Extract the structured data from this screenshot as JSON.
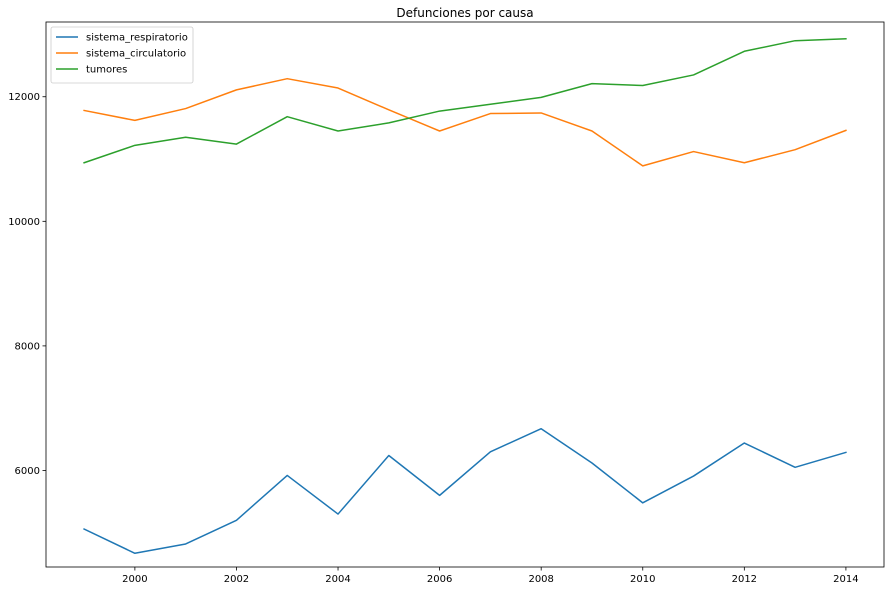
{
  "chart_data": {
    "type": "line",
    "title": "Defunciones por causa",
    "xlabel": "",
    "ylabel": "",
    "x": [
      1999,
      2000,
      2001,
      2002,
      2003,
      2004,
      2005,
      2006,
      2007,
      2008,
      2009,
      2010,
      2011,
      2012,
      2013,
      2014
    ],
    "xlim": [
      1998.25,
      2014.75
    ],
    "ylim": [
      4450,
      13200
    ],
    "xticks": [
      2000,
      2002,
      2004,
      2006,
      2008,
      2010,
      2012,
      2014
    ],
    "yticks": [
      6000,
      8000,
      10000,
      12000
    ],
    "grid": false,
    "legend_position": "top-left",
    "series": [
      {
        "name": "sistema_respiratorio",
        "color": "#1f77b4",
        "values": [
          5060,
          4670,
          4820,
          5200,
          5920,
          5300,
          6240,
          5600,
          6300,
          6670,
          6120,
          5480,
          5910,
          6440,
          6050,
          6290
        ]
      },
      {
        "name": "sistema_circulatorio",
        "color": "#ff7f0e",
        "values": [
          11780,
          11620,
          11810,
          12110,
          12290,
          12140,
          11790,
          11450,
          11730,
          11740,
          11450,
          10890,
          11120,
          10940,
          11150,
          11460
        ]
      },
      {
        "name": "tumores",
        "color": "#2ca02c",
        "values": [
          10940,
          11220,
          11350,
          11240,
          11680,
          11450,
          11580,
          11770,
          11880,
          11990,
          12210,
          12180,
          12350,
          12730,
          12900,
          12930
        ]
      }
    ]
  }
}
